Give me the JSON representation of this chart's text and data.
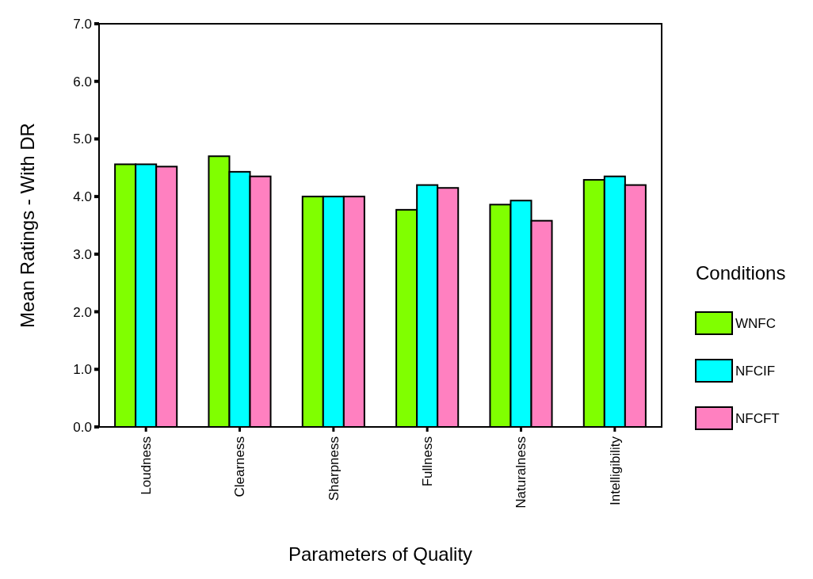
{
  "chart_data": {
    "type": "bar",
    "xlabel": "Parameters of Quality",
    "ylabel": "Mean Ratings - With DR",
    "legend_title": "Conditions",
    "legend": "right",
    "categories": [
      "Loudness",
      "Clearness",
      "Sharpness",
      "Fullness",
      "Naturalness",
      "Intelligibility"
    ],
    "series": [
      {
        "name": "WNFC",
        "color": "#80ff00",
        "values": [
          4.56,
          4.7,
          4.0,
          3.77,
          3.86,
          4.29
        ]
      },
      {
        "name": "NFCIF",
        "color": "#00ffff",
        "values": [
          4.56,
          4.43,
          4.0,
          4.2,
          3.93,
          4.35
        ]
      },
      {
        "name": "NFCFT",
        "color": "#ff80c0",
        "values": [
          4.52,
          4.35,
          4.0,
          4.15,
          3.58,
          4.2
        ]
      }
    ],
    "ylim": [
      0,
      7
    ],
    "yticks": [
      {
        "value": 0,
        "label": "0.0"
      },
      {
        "value": 1,
        "label": "1.0"
      },
      {
        "value": 2,
        "label": "2.0"
      },
      {
        "value": 3,
        "label": "3.0"
      },
      {
        "value": 4,
        "label": "4.0"
      },
      {
        "value": 5,
        "label": "5.0"
      },
      {
        "value": 6,
        "label": "6.0"
      },
      {
        "value": 7,
        "label": "7.0"
      }
    ]
  }
}
